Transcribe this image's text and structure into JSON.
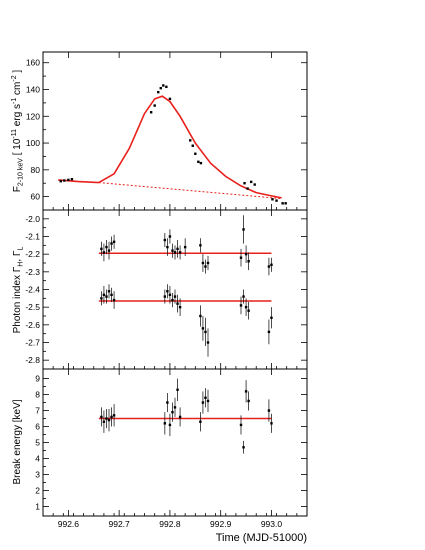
{
  "chart_data": [
    {
      "type": "scatter",
      "panel": "flux",
      "ylabel_main": "F",
      "ylabel_sub": "2-10 keV",
      "ylabel_rest": " [ 10",
      "ylabel_exp1": "-11",
      "ylabel_unit": " erg s",
      "ylabel_exp2": "-1",
      "ylabel_unit2": " cm",
      "ylabel_exp3": "-2",
      "ylabel_close": " ]",
      "ylim": [
        50,
        168
      ],
      "yticks": [
        60,
        80,
        100,
        120,
        140,
        160
      ],
      "tick_labels": [
        "60",
        "80",
        "100",
        "120",
        "140",
        "160"
      ],
      "points": [
        {
          "x": 992.585,
          "y": 71.5
        },
        {
          "x": 992.592,
          "y": 72.0
        },
        {
          "x": 992.6,
          "y": 72.5
        },
        {
          "x": 992.607,
          "y": 73.0
        },
        {
          "x": 992.763,
          "y": 123
        },
        {
          "x": 992.77,
          "y": 128
        },
        {
          "x": 992.777,
          "y": 138
        },
        {
          "x": 992.782,
          "y": 141
        },
        {
          "x": 992.787,
          "y": 143
        },
        {
          "x": 992.793,
          "y": 142
        },
        {
          "x": 992.8,
          "y": 133
        },
        {
          "x": 992.84,
          "y": 102
        },
        {
          "x": 992.845,
          "y": 98
        },
        {
          "x": 992.85,
          "y": 92
        },
        {
          "x": 992.856,
          "y": 86
        },
        {
          "x": 992.861,
          "y": 85
        },
        {
          "x": 992.947,
          "y": 70
        },
        {
          "x": 992.953,
          "y": 66
        },
        {
          "x": 992.96,
          "y": 71
        },
        {
          "x": 992.967,
          "y": 69
        },
        {
          "x": 993.002,
          "y": 58
        },
        {
          "x": 993.01,
          "y": 57
        },
        {
          "x": 993.022,
          "y": 55
        },
        {
          "x": 993.028,
          "y": 55
        }
      ],
      "model": [
        [
          992.58,
          72.5
        ],
        [
          992.62,
          71.2
        ],
        [
          992.66,
          70.5
        ],
        [
          992.69,
          77
        ],
        [
          992.72,
          96
        ],
        [
          992.75,
          122
        ],
        [
          992.77,
          133
        ],
        [
          992.785,
          135
        ],
        [
          992.8,
          131
        ],
        [
          992.82,
          120
        ],
        [
          992.85,
          100
        ],
        [
          992.88,
          85
        ],
        [
          992.91,
          75
        ],
        [
          992.94,
          68
        ],
        [
          992.97,
          63
        ],
        [
          993.0,
          60.5
        ],
        [
          993.02,
          59
        ]
      ],
      "baseline": [
        [
          992.66,
          70.5
        ],
        [
          993.02,
          58.5
        ]
      ]
    },
    {
      "type": "scatter",
      "panel": "photon_index",
      "ylabel_main": "Photon index  Γ",
      "ylabel_sub1": "H",
      "ylabel_mid": ", Γ",
      "ylabel_sub2": "L",
      "ylim": [
        -2.85,
        -1.95
      ],
      "yticks": [
        -2.0,
        -2.1,
        -2.2,
        -2.3,
        -2.4,
        -2.5,
        -2.6,
        -2.7,
        -2.8
      ],
      "tick_labels": [
        "-2.0",
        "-2.1",
        "-2.2",
        "-2.3",
        "-2.4",
        "-2.5",
        "-2.6",
        "-2.7",
        "-2.8"
      ],
      "fit_high": -2.195,
      "fit_low": -2.465,
      "fit_range": [
        992.66,
        993.0
      ],
      "points_high": [
        {
          "x": 992.665,
          "y": -2.17,
          "e": 0.04
        },
        {
          "x": 992.67,
          "y": -2.19,
          "e": 0.05
        },
        {
          "x": 992.675,
          "y": -2.16,
          "e": 0.04
        },
        {
          "x": 992.68,
          "y": -2.18,
          "e": 0.05
        },
        {
          "x": 992.685,
          "y": -2.14,
          "e": 0.04
        },
        {
          "x": 992.69,
          "y": -2.13,
          "e": 0.04
        },
        {
          "x": 992.79,
          "y": -2.12,
          "e": 0.04
        },
        {
          "x": 992.795,
          "y": -2.16,
          "e": 0.05
        },
        {
          "x": 992.8,
          "y": -2.1,
          "e": 0.04
        },
        {
          "x": 992.805,
          "y": -2.18,
          "e": 0.04
        },
        {
          "x": 992.81,
          "y": -2.19,
          "e": 0.04
        },
        {
          "x": 992.815,
          "y": -2.17,
          "e": 0.05
        },
        {
          "x": 992.82,
          "y": -2.19,
          "e": 0.04
        },
        {
          "x": 992.83,
          "y": -2.16,
          "e": 0.05
        },
        {
          "x": 992.86,
          "y": -2.15,
          "e": 0.04
        },
        {
          "x": 992.865,
          "y": -2.25,
          "e": 0.05
        },
        {
          "x": 992.87,
          "y": -2.27,
          "e": 0.04
        },
        {
          "x": 992.875,
          "y": -2.25,
          "e": 0.04
        },
        {
          "x": 992.94,
          "y": -2.22,
          "e": 0.05
        },
        {
          "x": 992.945,
          "y": -2.06,
          "e": 0.08
        },
        {
          "x": 992.95,
          "y": -2.2,
          "e": 0.05
        },
        {
          "x": 992.955,
          "y": -2.24,
          "e": 0.05
        },
        {
          "x": 992.995,
          "y": -2.27,
          "e": 0.05
        },
        {
          "x": 993.0,
          "y": -2.26,
          "e": 0.04
        }
      ],
      "points_low": [
        {
          "x": 992.665,
          "y": -2.45,
          "e": 0.04
        },
        {
          "x": 992.67,
          "y": -2.43,
          "e": 0.05
        },
        {
          "x": 992.675,
          "y": -2.44,
          "e": 0.04
        },
        {
          "x": 992.68,
          "y": -2.41,
          "e": 0.04
        },
        {
          "x": 992.685,
          "y": -2.43,
          "e": 0.04
        },
        {
          "x": 992.69,
          "y": -2.46,
          "e": 0.05
        },
        {
          "x": 992.79,
          "y": -2.44,
          "e": 0.04
        },
        {
          "x": 992.795,
          "y": -2.41,
          "e": 0.04
        },
        {
          "x": 992.8,
          "y": -2.43,
          "e": 0.05
        },
        {
          "x": 992.805,
          "y": -2.46,
          "e": 0.04
        },
        {
          "x": 992.81,
          "y": -2.44,
          "e": 0.04
        },
        {
          "x": 992.815,
          "y": -2.48,
          "e": 0.05
        },
        {
          "x": 992.82,
          "y": -2.5,
          "e": 0.05
        },
        {
          "x": 992.86,
          "y": -2.55,
          "e": 0.06
        },
        {
          "x": 992.865,
          "y": -2.62,
          "e": 0.07
        },
        {
          "x": 992.87,
          "y": -2.64,
          "e": 0.08
        },
        {
          "x": 992.875,
          "y": -2.7,
          "e": 0.08
        },
        {
          "x": 992.94,
          "y": -2.49,
          "e": 0.05
        },
        {
          "x": 992.945,
          "y": -2.44,
          "e": 0.04
        },
        {
          "x": 992.95,
          "y": -2.5,
          "e": 0.05
        },
        {
          "x": 992.955,
          "y": -2.52,
          "e": 0.05
        },
        {
          "x": 992.995,
          "y": -2.64,
          "e": 0.07
        },
        {
          "x": 993.0,
          "y": -2.56,
          "e": 0.06
        }
      ]
    },
    {
      "type": "scatter",
      "panel": "break_energy",
      "ylabel_main": "Break energy  [keV]",
      "ylim": [
        0.4,
        9.6
      ],
      "yticks": [
        1,
        2,
        3,
        4,
        5,
        6,
        7,
        8,
        9
      ],
      "tick_labels": [
        "1",
        "2",
        "3",
        "4",
        "5",
        "6",
        "7",
        "8",
        "9"
      ],
      "fit": 6.5,
      "fit_range": [
        992.66,
        993.0
      ],
      "points": [
        {
          "x": 992.665,
          "y": 6.6,
          "e": 0.6
        },
        {
          "x": 992.67,
          "y": 6.3,
          "e": 0.7
        },
        {
          "x": 992.675,
          "y": 6.5,
          "e": 0.6
        },
        {
          "x": 992.68,
          "y": 6.4,
          "e": 0.7
        },
        {
          "x": 992.685,
          "y": 6.6,
          "e": 0.6
        },
        {
          "x": 992.69,
          "y": 6.7,
          "e": 0.7
        },
        {
          "x": 992.79,
          "y": 6.2,
          "e": 0.7
        },
        {
          "x": 992.795,
          "y": 7.5,
          "e": 0.6
        },
        {
          "x": 992.8,
          "y": 6.1,
          "e": 0.7
        },
        {
          "x": 992.805,
          "y": 6.9,
          "e": 0.6
        },
        {
          "x": 992.81,
          "y": 7.2,
          "e": 0.6
        },
        {
          "x": 992.815,
          "y": 8.3,
          "e": 0.7
        },
        {
          "x": 992.82,
          "y": 6.6,
          "e": 0.6
        },
        {
          "x": 992.86,
          "y": 6.3,
          "e": 0.6
        },
        {
          "x": 992.865,
          "y": 7.5,
          "e": 0.7
        },
        {
          "x": 992.87,
          "y": 7.8,
          "e": 0.6
        },
        {
          "x": 992.875,
          "y": 7.6,
          "e": 0.7
        },
        {
          "x": 992.94,
          "y": 6.1,
          "e": 0.6
        },
        {
          "x": 992.945,
          "y": 4.7,
          "e": 0.4
        },
        {
          "x": 992.95,
          "y": 8.2,
          "e": 0.7
        },
        {
          "x": 992.955,
          "y": 7.6,
          "e": 0.6
        },
        {
          "x": 992.995,
          "y": 7.0,
          "e": 0.7
        },
        {
          "x": 993.0,
          "y": 6.2,
          "e": 0.6
        }
      ]
    }
  ],
  "x_axis": {
    "xlim": [
      992.55,
      993.07
    ],
    "ticks": [
      992.6,
      992.7,
      992.8,
      992.9,
      993.0
    ],
    "tick_labels": [
      "992.6",
      "992.7",
      "992.8",
      "992.9",
      "993.0"
    ],
    "label": "Time (MJD-51000)"
  },
  "colors": {
    "model": "#e8201c",
    "data": "#000000"
  }
}
